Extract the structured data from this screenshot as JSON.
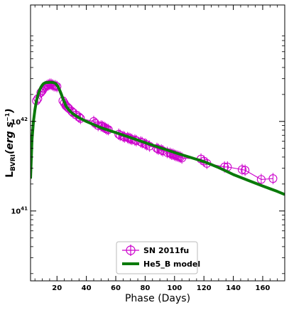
{
  "chart_data": {
    "type": "line",
    "title": "",
    "xlabel": "Phase (Days)",
    "ylabel_main": "L",
    "ylabel_sub": "BVRI",
    "ylabel_unit": "(erg s",
    "ylabel_exp": "−1",
    "ylabel_close": ")",
    "xlim": [
      2,
      175
    ],
    "ylim_log10": [
      40.22,
      43.3
    ],
    "yscale": "log",
    "x_ticks": [
      20,
      40,
      60,
      80,
      100,
      120,
      140,
      160
    ],
    "x_tick_labels": [
      "20",
      "40",
      "60",
      "80",
      "100",
      "120",
      "140",
      "160"
    ],
    "y_ticks_log10": [
      41,
      42
    ],
    "y_tick_base": "10",
    "y_tick_exps": [
      "41",
      "42"
    ],
    "legend_position": "lower-center",
    "colors": {
      "observed": "#cc00cc",
      "model": "#0a7a0a"
    },
    "series": [
      {
        "name": "SN 2011fu",
        "style": "line-circle-errorbar",
        "x": [
          6,
          7,
          9,
          10,
          11,
          12,
          13,
          14,
          15,
          16,
          17,
          18,
          19,
          20,
          24,
          25,
          26,
          27,
          28,
          30,
          31,
          33,
          35,
          36,
          45,
          46,
          48,
          50,
          51,
          52,
          53,
          54,
          55,
          62,
          63,
          65,
          66,
          68,
          69,
          70,
          71,
          73,
          74,
          77,
          78,
          80,
          81,
          83,
          88,
          89,
          91,
          92,
          95,
          97,
          98,
          99,
          100,
          101,
          102,
          103,
          104,
          105,
          118,
          120,
          122,
          134,
          136,
          146,
          148,
          159,
          167
        ],
        "y": [
          1.7e+42,
          1.8e+42,
          2.1e+42,
          2.2e+42,
          2.35e+42,
          2.45e+42,
          2.5e+42,
          2.55e+42,
          2.6e+42,
          2.6e+42,
          2.55e+42,
          2.5e+42,
          2.5e+42,
          2.45e+42,
          1.7e+42,
          1.6e+42,
          1.5e+42,
          1.45e+42,
          1.4e+42,
          1.3e+42,
          1.25e+42,
          1.18e+42,
          1.12e+42,
          1.08e+42,
          1e+42,
          9.5e+41,
          9e+41,
          8.9e+41,
          8.8e+41,
          8.6e+41,
          8.4e+41,
          8.2e+41,
          8.1e+41,
          7.2e+41,
          7e+41,
          6.8e+41,
          6.7e+41,
          6.6e+41,
          6.5e+41,
          6.4e+41,
          6.3e+41,
          6.2e+41,
          6.1e+41,
          5.9e+41,
          5.8e+41,
          5.6e+41,
          5.5e+41,
          5.3e+41,
          5e+41,
          4.9e+41,
          4.8e+41,
          4.7e+41,
          4.5e+41,
          4.4e+41,
          4.3e+41,
          4.3e+41,
          4.2e+41,
          4.15e+41,
          4.1e+41,
          4.05e+41,
          4e+41,
          3.9e+41,
          3.8e+41,
          3.6e+41,
          3.4e+41,
          3.1e+41,
          3.1e+41,
          2.9e+41,
          2.85e+41,
          2.25e+41,
          2.3e+41
        ]
      },
      {
        "name": "He5_B model",
        "style": "line",
        "x": [
          2,
          3,
          4,
          5,
          6,
          7,
          8,
          9,
          10,
          11,
          12,
          13,
          14,
          15,
          16,
          17,
          18,
          19,
          20,
          21,
          22,
          23,
          24,
          25,
          26,
          27,
          28,
          30,
          32,
          35,
          40,
          45,
          50,
          60,
          70,
          80,
          90,
          100,
          110,
          120,
          125,
          130,
          135,
          140,
          150,
          160,
          170,
          175
        ],
        "y": [
          2.3e+41,
          6.3e+41,
          1e+42,
          1.35e+42,
          1.7e+42,
          1.95e+42,
          2.2e+42,
          2.4e+42,
          2.55e+42,
          2.65e+42,
          2.7e+42,
          2.72e+42,
          2.72e+42,
          2.73e+42,
          2.73e+42,
          2.72e+42,
          2.7e+42,
          2.65e+42,
          2.55e+42,
          2.4e+42,
          2.2e+42,
          2e+42,
          1.8e+42,
          1.65e+42,
          1.5e+42,
          1.42e+42,
          1.35e+42,
          1.25e+42,
          1.18e+42,
          1.1e+42,
          1e+42,
          9.2e+41,
          8.5e+41,
          7.5e+41,
          6.6e+41,
          5.8e+41,
          5.1e+41,
          4.5e+41,
          4e+41,
          3.55e+41,
          3.3e+41,
          3.05e+41,
          2.8e+41,
          2.55e+41,
          2.2e+41,
          1.9e+41,
          1.65e+41,
          1.53e+41
        ]
      }
    ]
  }
}
